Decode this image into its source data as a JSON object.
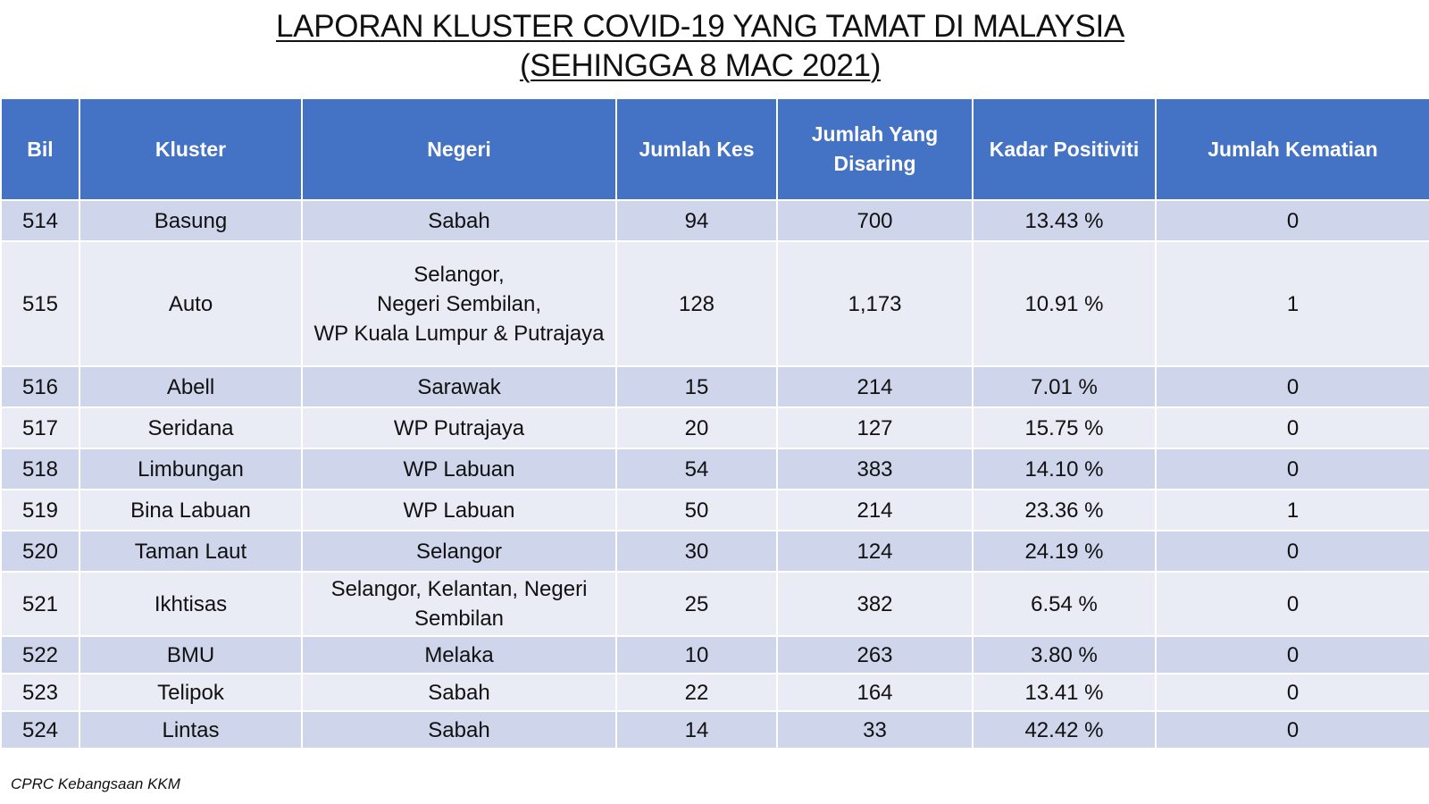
{
  "title": {
    "line1": "LAPORAN KLUSTER COVID-19 YANG TAMAT DI MALAYSIA",
    "line2": "(SEHINGGA 8 MAC 2021)"
  },
  "table": {
    "headers": [
      "Bil",
      "Kluster",
      "Negeri",
      "Jumlah Kes",
      "Jumlah Yang Disaring",
      "Kadar Positiviti",
      "Jumlah Kematian"
    ],
    "rows": [
      {
        "bil": "514",
        "kluster": "Basung",
        "negeri": [
          "Sabah"
        ],
        "kes": "94",
        "disaring": "700",
        "positiviti": "13.43 %",
        "kematian": "0"
      },
      {
        "bil": "515",
        "kluster": "Auto",
        "negeri": [
          "Selangor,",
          "Negeri Sembilan,",
          "WP Kuala Lumpur & Putrajaya"
        ],
        "kes": "128",
        "disaring": "1,173",
        "positiviti": "10.91 %",
        "kematian": "1"
      },
      {
        "bil": "516",
        "kluster": "Abell",
        "negeri": [
          "Sarawak"
        ],
        "kes": "15",
        "disaring": "214",
        "positiviti": "7.01 %",
        "kematian": "0"
      },
      {
        "bil": "517",
        "kluster": "Seridana",
        "negeri": [
          "WP Putrajaya"
        ],
        "kes": "20",
        "disaring": "127",
        "positiviti": "15.75 %",
        "kematian": "0"
      },
      {
        "bil": "518",
        "kluster": "Limbungan",
        "negeri": [
          "WP Labuan"
        ],
        "kes": "54",
        "disaring": "383",
        "positiviti": "14.10 %",
        "kematian": "0"
      },
      {
        "bil": "519",
        "kluster": "Bina Labuan",
        "negeri": [
          "WP Labuan"
        ],
        "kes": "50",
        "disaring": "214",
        "positiviti": "23.36 %",
        "kematian": "1"
      },
      {
        "bil": "520",
        "kluster": "Taman Laut",
        "negeri": [
          "Selangor"
        ],
        "kes": "30",
        "disaring": "124",
        "positiviti": "24.19 %",
        "kematian": "0"
      },
      {
        "bil": "521",
        "kluster": "Ikhtisas",
        "negeri": [
          "Selangor, Kelantan, Negeri",
          "Sembilan"
        ],
        "kes": "25",
        "disaring": "382",
        "positiviti": "6.54 %",
        "kematian": "0"
      },
      {
        "bil": "522",
        "kluster": "BMU",
        "negeri": [
          "Melaka"
        ],
        "kes": "10",
        "disaring": "263",
        "positiviti": "3.80 %",
        "kematian": "0"
      },
      {
        "bil": "523",
        "kluster": "Telipok",
        "negeri": [
          "Sabah"
        ],
        "kes": "22",
        "disaring": "164",
        "positiviti": "13.41 %",
        "kematian": "0"
      },
      {
        "bil": "524",
        "kluster": "Lintas",
        "negeri": [
          "Sabah"
        ],
        "kes": "14",
        "disaring": "33",
        "positiviti": "42.42 %",
        "kematian": "0"
      }
    ]
  },
  "footer": "CPRC Kebangsaan KKM",
  "colors": {
    "header_bg": "#4472c4",
    "row_dark": "#cfd5ea",
    "row_light": "#e9ebf5"
  }
}
